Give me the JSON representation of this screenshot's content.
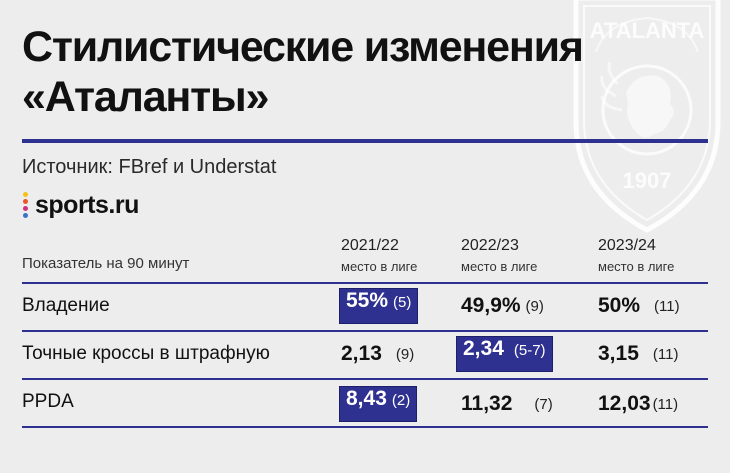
{
  "header": {
    "title_line1": "Стилистические изменения",
    "title_line2": "«Аталанты»",
    "source": "Источник: FBref и Understat",
    "brand": "sports.ru"
  },
  "crest": {
    "name": "ATALANTA",
    "year": "1907"
  },
  "colors": {
    "accent": "#2f3190",
    "background": "#ededed",
    "text": "#111111"
  },
  "chart_data": {
    "type": "table",
    "metric_header": "Показатель на 90 минут",
    "columns": [
      {
        "season": "2021/22",
        "sub": "место в лиге"
      },
      {
        "season": "2022/23",
        "sub": "место в лиге"
      },
      {
        "season": "2023/24",
        "sub": "место в лиге"
      }
    ],
    "rows": [
      {
        "label": "Владение",
        "cells": [
          {
            "value": "55%",
            "rank": "(5)",
            "highlight": true
          },
          {
            "value": "49,9%",
            "rank": "(9)",
            "highlight": false
          },
          {
            "value": "50%",
            "rank": "(11)",
            "highlight": false
          }
        ]
      },
      {
        "label": "Точные кроссы в штрафную",
        "cells": [
          {
            "value": "2,13",
            "rank": "(9)",
            "highlight": false
          },
          {
            "value": "2,34",
            "rank": "(5-7)",
            "highlight": true
          },
          {
            "value": "3,15",
            "rank": "(11)",
            "highlight": false
          }
        ]
      },
      {
        "label": "PPDA",
        "cells": [
          {
            "value": "8,43",
            "rank": "(2)",
            "highlight": true
          },
          {
            "value": "11,32",
            "rank": "(7)",
            "highlight": false
          },
          {
            "value": "12,03",
            "rank": "(11)",
            "highlight": false
          }
        ]
      }
    ]
  }
}
